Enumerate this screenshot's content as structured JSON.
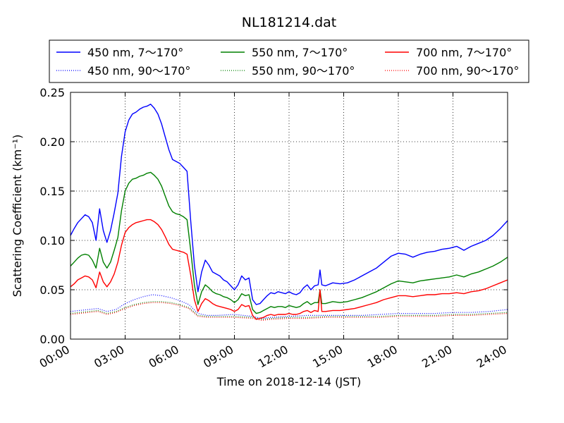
{
  "chart_data": {
    "type": "line",
    "title": "NL181214.dat",
    "xlabel": "Time on 2018-12-14 (JST)",
    "ylabel": "Scattering Coefficient (km⁻¹)",
    "xlim": [
      0,
      24
    ],
    "ylim": [
      0,
      0.25
    ],
    "x_ticks": [
      0,
      3,
      6,
      9,
      12,
      15,
      18,
      21,
      24
    ],
    "x_tick_labels": [
      "00:00",
      "03:00",
      "06:00",
      "09:00",
      "12:00",
      "15:00",
      "18:00",
      "21:00",
      "24:00"
    ],
    "y_ticks": [
      0,
      0.05,
      0.1,
      0.15,
      0.2,
      0.25
    ],
    "y_tick_labels": [
      "0.00",
      "0.05",
      "0.10",
      "0.15",
      "0.20",
      "0.25"
    ],
    "grid": true,
    "legend_position": "top",
    "series": [
      {
        "name": "450 nm, 7～170°",
        "color": "#0000ff",
        "style": "solid",
        "x": [
          0,
          0.2,
          0.4,
          0.6,
          0.8,
          1.0,
          1.2,
          1.4,
          1.6,
          1.8,
          2.0,
          2.2,
          2.4,
          2.6,
          2.8,
          3.0,
          3.2,
          3.4,
          3.6,
          3.8,
          4.0,
          4.2,
          4.4,
          4.6,
          4.8,
          5.0,
          5.2,
          5.4,
          5.6,
          5.8,
          6.0,
          6.2,
          6.4,
          6.6,
          6.8,
          7.0,
          7.2,
          7.4,
          7.6,
          7.8,
          8.0,
          8.2,
          8.4,
          8.6,
          8.8,
          9.0,
          9.2,
          9.4,
          9.6,
          9.8,
          10.0,
          10.2,
          10.4,
          10.6,
          10.8,
          11.0,
          11.2,
          11.4,
          11.6,
          11.8,
          12.0,
          12.2,
          12.4,
          12.6,
          12.8,
          13.0,
          13.2,
          13.4,
          13.6,
          13.7,
          13.8,
          14.0,
          14.4,
          14.8,
          15.2,
          15.6,
          16.0,
          16.4,
          16.8,
          17.2,
          17.6,
          18.0,
          18.4,
          18.8,
          19.2,
          19.6,
          20.0,
          20.4,
          20.8,
          21.2,
          21.6,
          22.0,
          22.4,
          22.8,
          23.2,
          23.6,
          24.0
        ],
        "y": [
          0.105,
          0.112,
          0.118,
          0.122,
          0.126,
          0.124,
          0.118,
          0.1,
          0.132,
          0.11,
          0.098,
          0.11,
          0.128,
          0.148,
          0.185,
          0.21,
          0.222,
          0.228,
          0.23,
          0.233,
          0.235,
          0.236,
          0.238,
          0.234,
          0.228,
          0.218,
          0.205,
          0.192,
          0.182,
          0.18,
          0.178,
          0.174,
          0.17,
          0.12,
          0.075,
          0.048,
          0.068,
          0.08,
          0.075,
          0.068,
          0.066,
          0.064,
          0.06,
          0.058,
          0.054,
          0.05,
          0.055,
          0.064,
          0.06,
          0.062,
          0.04,
          0.035,
          0.036,
          0.04,
          0.044,
          0.047,
          0.046,
          0.048,
          0.047,
          0.046,
          0.048,
          0.046,
          0.045,
          0.047,
          0.052,
          0.055,
          0.05,
          0.054,
          0.055,
          0.07,
          0.055,
          0.054,
          0.057,
          0.056,
          0.057,
          0.06,
          0.064,
          0.068,
          0.072,
          0.078,
          0.084,
          0.087,
          0.086,
          0.083,
          0.086,
          0.088,
          0.089,
          0.091,
          0.092,
          0.094,
          0.09,
          0.094,
          0.097,
          0.1,
          0.105,
          0.112,
          0.12
        ]
      },
      {
        "name": "550 nm, 7～170°",
        "color": "#008000",
        "style": "solid",
        "x": [
          0,
          0.2,
          0.4,
          0.6,
          0.8,
          1.0,
          1.2,
          1.4,
          1.6,
          1.8,
          2.0,
          2.2,
          2.4,
          2.6,
          2.8,
          3.0,
          3.2,
          3.4,
          3.6,
          3.8,
          4.0,
          4.2,
          4.4,
          4.6,
          4.8,
          5.0,
          5.2,
          5.4,
          5.6,
          5.8,
          6.0,
          6.2,
          6.4,
          6.6,
          6.8,
          7.0,
          7.2,
          7.4,
          7.6,
          7.8,
          8.0,
          8.2,
          8.4,
          8.6,
          8.8,
          9.0,
          9.2,
          9.4,
          9.6,
          9.8,
          10.0,
          10.2,
          10.4,
          10.6,
          10.8,
          11.0,
          11.2,
          11.4,
          11.6,
          11.8,
          12.0,
          12.2,
          12.4,
          12.6,
          12.8,
          13.0,
          13.2,
          13.4,
          13.6,
          13.7,
          13.8,
          14.0,
          14.4,
          14.8,
          15.2,
          15.6,
          16.0,
          16.4,
          16.8,
          17.2,
          17.6,
          18.0,
          18.4,
          18.8,
          19.2,
          19.6,
          20.0,
          20.4,
          20.8,
          21.2,
          21.6,
          22.0,
          22.4,
          22.8,
          23.2,
          23.6,
          24.0
        ],
        "y": [
          0.074,
          0.078,
          0.082,
          0.085,
          0.086,
          0.085,
          0.08,
          0.072,
          0.092,
          0.078,
          0.072,
          0.078,
          0.09,
          0.103,
          0.13,
          0.15,
          0.158,
          0.162,
          0.163,
          0.165,
          0.166,
          0.168,
          0.169,
          0.166,
          0.162,
          0.155,
          0.145,
          0.135,
          0.129,
          0.127,
          0.126,
          0.124,
          0.121,
          0.09,
          0.055,
          0.035,
          0.048,
          0.055,
          0.052,
          0.048,
          0.046,
          0.045,
          0.043,
          0.042,
          0.04,
          0.037,
          0.04,
          0.046,
          0.044,
          0.045,
          0.03,
          0.026,
          0.027,
          0.029,
          0.031,
          0.033,
          0.032,
          0.033,
          0.033,
          0.032,
          0.034,
          0.033,
          0.032,
          0.033,
          0.036,
          0.038,
          0.035,
          0.037,
          0.037,
          0.05,
          0.036,
          0.036,
          0.038,
          0.037,
          0.038,
          0.04,
          0.042,
          0.045,
          0.048,
          0.052,
          0.056,
          0.059,
          0.058,
          0.057,
          0.059,
          0.06,
          0.061,
          0.062,
          0.063,
          0.065,
          0.063,
          0.066,
          0.068,
          0.071,
          0.074,
          0.078,
          0.083
        ]
      },
      {
        "name": "700 nm, 7～170°",
        "color": "#ff0000",
        "style": "solid",
        "x": [
          0,
          0.2,
          0.4,
          0.6,
          0.8,
          1.0,
          1.2,
          1.4,
          1.6,
          1.8,
          2.0,
          2.2,
          2.4,
          2.6,
          2.8,
          3.0,
          3.2,
          3.4,
          3.6,
          3.8,
          4.0,
          4.2,
          4.4,
          4.6,
          4.8,
          5.0,
          5.2,
          5.4,
          5.6,
          5.8,
          6.0,
          6.2,
          6.4,
          6.6,
          6.8,
          7.0,
          7.2,
          7.4,
          7.6,
          7.8,
          8.0,
          8.2,
          8.4,
          8.6,
          8.8,
          9.0,
          9.2,
          9.4,
          9.6,
          9.8,
          10.0,
          10.2,
          10.4,
          10.6,
          10.8,
          11.0,
          11.2,
          11.4,
          11.6,
          11.8,
          12.0,
          12.2,
          12.4,
          12.6,
          12.8,
          13.0,
          13.2,
          13.4,
          13.6,
          13.7,
          13.8,
          14.0,
          14.4,
          14.8,
          15.2,
          15.6,
          16.0,
          16.4,
          16.8,
          17.2,
          17.6,
          18.0,
          18.4,
          18.8,
          19.2,
          19.6,
          20.0,
          20.4,
          20.8,
          21.2,
          21.6,
          22.0,
          22.4,
          22.8,
          23.2,
          23.6,
          24.0
        ],
        "y": [
          0.053,
          0.056,
          0.06,
          0.062,
          0.064,
          0.063,
          0.06,
          0.052,
          0.068,
          0.058,
          0.053,
          0.058,
          0.066,
          0.078,
          0.095,
          0.108,
          0.113,
          0.116,
          0.118,
          0.119,
          0.12,
          0.121,
          0.121,
          0.119,
          0.116,
          0.111,
          0.104,
          0.096,
          0.091,
          0.09,
          0.089,
          0.088,
          0.086,
          0.065,
          0.04,
          0.028,
          0.036,
          0.041,
          0.039,
          0.036,
          0.034,
          0.033,
          0.032,
          0.031,
          0.03,
          0.028,
          0.03,
          0.035,
          0.033,
          0.034,
          0.024,
          0.02,
          0.021,
          0.022,
          0.024,
          0.025,
          0.024,
          0.025,
          0.025,
          0.025,
          0.026,
          0.025,
          0.025,
          0.026,
          0.028,
          0.029,
          0.027,
          0.029,
          0.028,
          0.05,
          0.028,
          0.028,
          0.029,
          0.029,
          0.03,
          0.031,
          0.033,
          0.035,
          0.037,
          0.04,
          0.042,
          0.044,
          0.044,
          0.043,
          0.044,
          0.045,
          0.045,
          0.046,
          0.046,
          0.047,
          0.046,
          0.048,
          0.049,
          0.051,
          0.054,
          0.057,
          0.06
        ]
      },
      {
        "name": "450 nm, 90～170°",
        "color": "#0000ff",
        "style": "dotted",
        "x": [
          0,
          0.5,
          1.0,
          1.5,
          2.0,
          2.5,
          3.0,
          3.5,
          4.0,
          4.5,
          5.0,
          5.5,
          6.0,
          6.5,
          7.0,
          7.5,
          8.0,
          9.0,
          10.0,
          10.5,
          11.0,
          12.0,
          13.0,
          14.0,
          15.0,
          16.0,
          17.0,
          18.0,
          19.0,
          20.0,
          21.0,
          22.0,
          23.0,
          24.0
        ],
        "y": [
          0.028,
          0.029,
          0.03,
          0.031,
          0.028,
          0.03,
          0.036,
          0.04,
          0.043,
          0.045,
          0.044,
          0.042,
          0.039,
          0.035,
          0.026,
          0.024,
          0.024,
          0.025,
          0.023,
          0.021,
          0.022,
          0.023,
          0.024,
          0.024,
          0.024,
          0.024,
          0.025,
          0.026,
          0.026,
          0.026,
          0.027,
          0.027,
          0.028,
          0.03
        ]
      },
      {
        "name": "550 nm, 90～170°",
        "color": "#008000",
        "style": "dotted",
        "x": [
          0,
          0.5,
          1.0,
          1.5,
          2.0,
          2.5,
          3.0,
          3.5,
          4.0,
          4.5,
          5.0,
          5.5,
          6.0,
          6.5,
          7.0,
          7.5,
          8.0,
          9.0,
          10.0,
          10.5,
          11.0,
          12.0,
          13.0,
          14.0,
          15.0,
          16.0,
          17.0,
          18.0,
          19.0,
          20.0,
          21.0,
          22.0,
          23.0,
          24.0
        ],
        "y": [
          0.026,
          0.027,
          0.028,
          0.029,
          0.026,
          0.028,
          0.032,
          0.035,
          0.037,
          0.038,
          0.038,
          0.037,
          0.035,
          0.032,
          0.024,
          0.023,
          0.023,
          0.023,
          0.022,
          0.02,
          0.021,
          0.022,
          0.022,
          0.023,
          0.023,
          0.023,
          0.023,
          0.024,
          0.024,
          0.024,
          0.025,
          0.025,
          0.026,
          0.027
        ]
      },
      {
        "name": "700 nm, 90～170°",
        "color": "#ff0000",
        "style": "dotted",
        "x": [
          0,
          0.5,
          1.0,
          1.5,
          2.0,
          2.5,
          3.0,
          3.5,
          4.0,
          4.5,
          5.0,
          5.5,
          6.0,
          6.5,
          7.0,
          7.5,
          8.0,
          9.0,
          10.0,
          10.5,
          11.0,
          12.0,
          13.0,
          14.0,
          15.0,
          16.0,
          17.0,
          18.0,
          19.0,
          20.0,
          21.0,
          22.0,
          23.0,
          24.0
        ],
        "y": [
          0.025,
          0.026,
          0.027,
          0.028,
          0.025,
          0.027,
          0.031,
          0.034,
          0.036,
          0.037,
          0.037,
          0.036,
          0.034,
          0.031,
          0.023,
          0.022,
          0.022,
          0.022,
          0.021,
          0.019,
          0.02,
          0.021,
          0.021,
          0.022,
          0.022,
          0.022,
          0.022,
          0.023,
          0.023,
          0.023,
          0.024,
          0.024,
          0.025,
          0.026
        ]
      }
    ]
  }
}
